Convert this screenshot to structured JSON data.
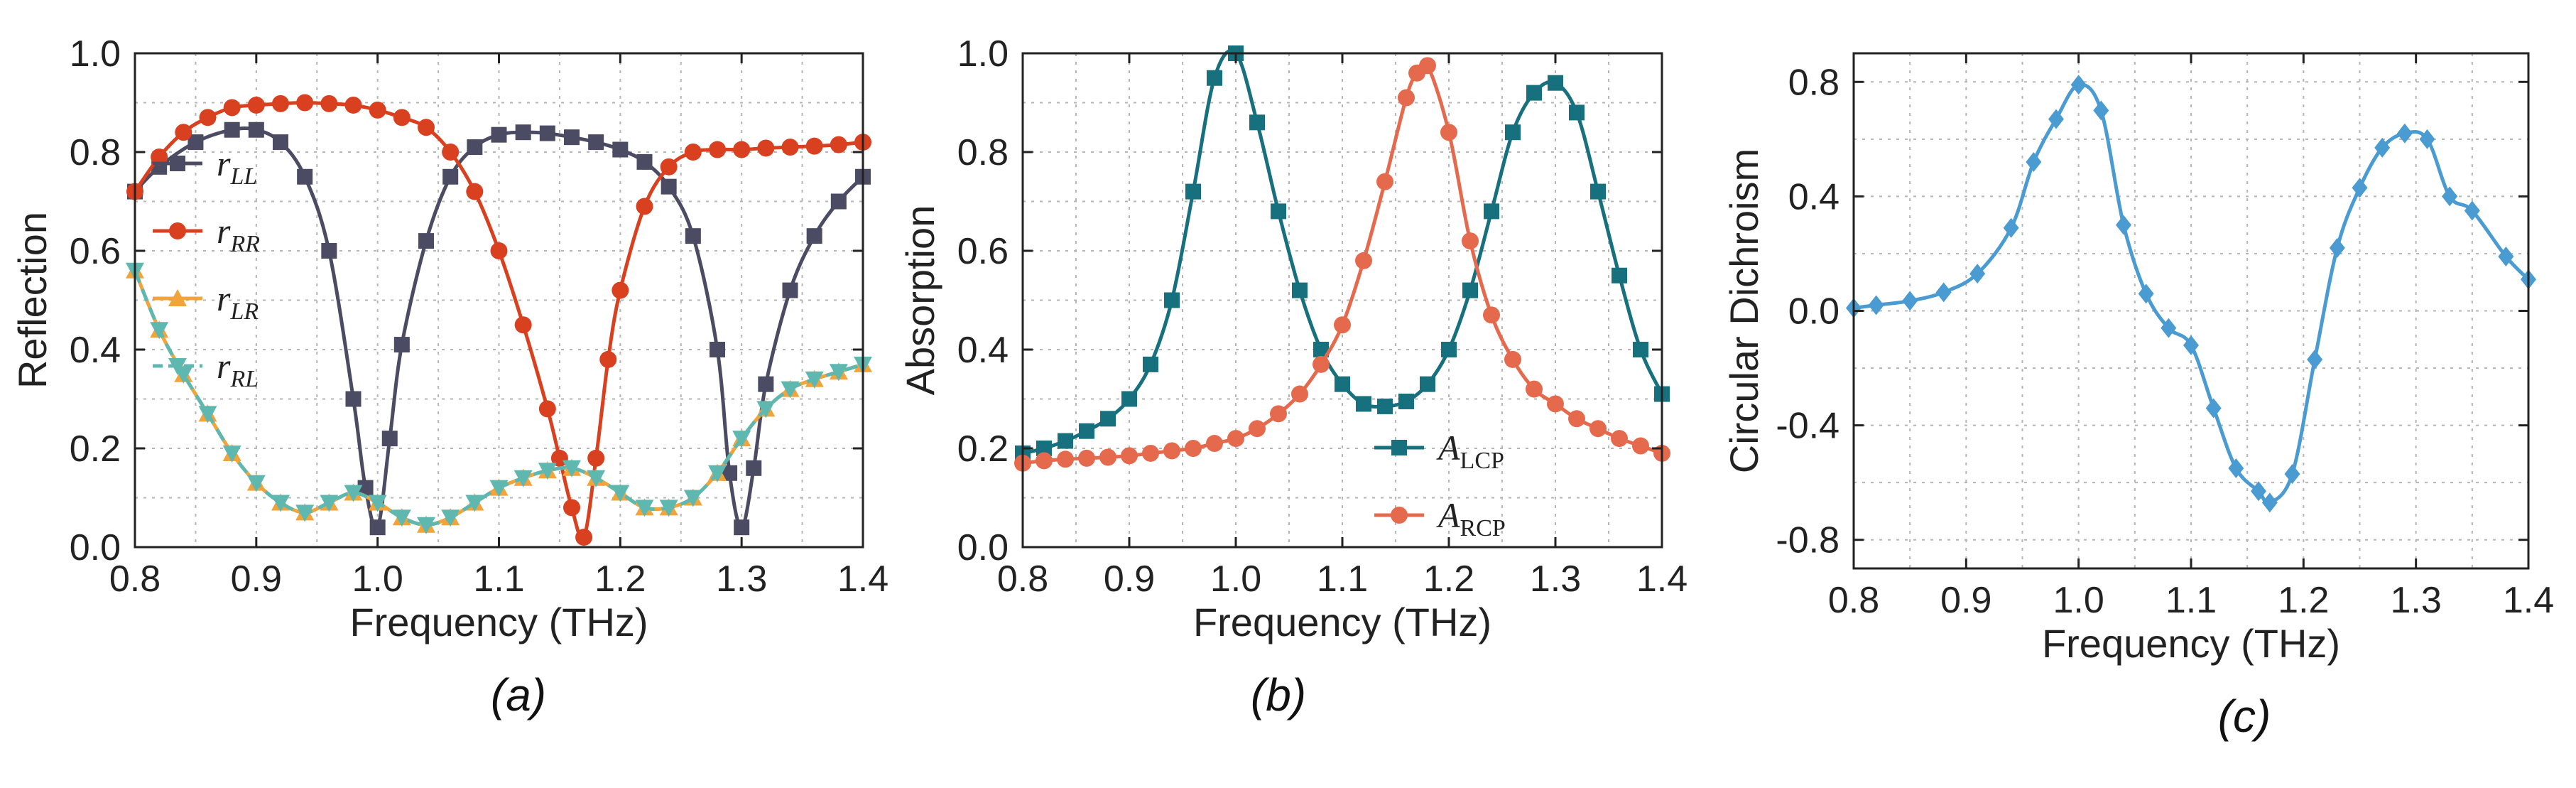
{
  "chart_data": [
    {
      "type": "line",
      "panel_label": "(a)",
      "xlabel": "Frequency (THz)",
      "ylabel": "Reflection",
      "xlim": [
        0.8,
        1.4
      ],
      "ylim": [
        0.0,
        1.0
      ],
      "xticks": [
        "0.8",
        "0.9",
        "1.0",
        "1.1",
        "1.2",
        "1.3",
        "1.4"
      ],
      "yticks": [
        "0.0",
        "0.2",
        "0.4",
        "0.6",
        "0.8",
        "1.0"
      ],
      "grid": true,
      "legend_position": "left",
      "series": [
        {
          "name": "r_LL",
          "legend_main": "r",
          "legend_sub": "LL",
          "color": "#4b4b63",
          "marker": "square",
          "x": [
            0.8,
            0.82,
            0.85,
            0.88,
            0.9,
            0.92,
            0.94,
            0.96,
            0.98,
            0.99,
            1.0,
            1.01,
            1.02,
            1.04,
            1.06,
            1.08,
            1.1,
            1.12,
            1.14,
            1.16,
            1.18,
            1.2,
            1.22,
            1.24,
            1.26,
            1.28,
            1.29,
            1.3,
            1.31,
            1.32,
            1.34,
            1.36,
            1.38,
            1.4
          ],
          "y": [
            0.72,
            0.77,
            0.82,
            0.845,
            0.845,
            0.82,
            0.75,
            0.6,
            0.3,
            0.12,
            0.04,
            0.22,
            0.41,
            0.62,
            0.75,
            0.81,
            0.835,
            0.84,
            0.838,
            0.83,
            0.82,
            0.805,
            0.78,
            0.73,
            0.63,
            0.4,
            0.15,
            0.04,
            0.16,
            0.33,
            0.52,
            0.63,
            0.7,
            0.75
          ]
        },
        {
          "name": "r_RR",
          "legend_main": "r",
          "legend_sub": "RR",
          "color": "#d9401f",
          "marker": "circle",
          "x": [
            0.8,
            0.82,
            0.84,
            0.86,
            0.88,
            0.9,
            0.92,
            0.94,
            0.96,
            0.98,
            1.0,
            1.02,
            1.04,
            1.06,
            1.08,
            1.1,
            1.12,
            1.14,
            1.15,
            1.16,
            1.17,
            1.18,
            1.19,
            1.2,
            1.22,
            1.24,
            1.26,
            1.28,
            1.3,
            1.32,
            1.34,
            1.36,
            1.38,
            1.4
          ],
          "y": [
            0.72,
            0.79,
            0.84,
            0.87,
            0.89,
            0.895,
            0.898,
            0.9,
            0.898,
            0.895,
            0.885,
            0.87,
            0.85,
            0.8,
            0.72,
            0.6,
            0.45,
            0.28,
            0.18,
            0.08,
            0.02,
            0.18,
            0.38,
            0.52,
            0.69,
            0.77,
            0.8,
            0.805,
            0.805,
            0.808,
            0.81,
            0.812,
            0.815,
            0.82
          ]
        },
        {
          "name": "r_LR",
          "legend_main": "r",
          "legend_sub": "LR",
          "color": "#f2a33a",
          "marker": "triangle-up",
          "x": [
            0.8,
            0.82,
            0.84,
            0.86,
            0.88,
            0.9,
            0.92,
            0.94,
            0.96,
            0.98,
            1.0,
            1.02,
            1.04,
            1.06,
            1.08,
            1.1,
            1.12,
            1.14,
            1.16,
            1.18,
            1.2,
            1.22,
            1.24,
            1.26,
            1.28,
            1.3,
            1.32,
            1.34,
            1.36,
            1.38,
            1.4
          ],
          "y": [
            0.56,
            0.44,
            0.35,
            0.27,
            0.19,
            0.13,
            0.09,
            0.07,
            0.09,
            0.11,
            0.09,
            0.06,
            0.045,
            0.06,
            0.09,
            0.12,
            0.14,
            0.155,
            0.16,
            0.14,
            0.11,
            0.08,
            0.08,
            0.1,
            0.15,
            0.22,
            0.28,
            0.32,
            0.34,
            0.355,
            0.37
          ]
        },
        {
          "name": "r_RL",
          "legend_main": "r",
          "legend_sub": "RL",
          "color": "#5fb8b0",
          "marker": "triangle-down",
          "dashed": true,
          "x": [
            0.8,
            0.82,
            0.84,
            0.86,
            0.88,
            0.9,
            0.92,
            0.94,
            0.96,
            0.98,
            1.0,
            1.02,
            1.04,
            1.06,
            1.08,
            1.1,
            1.12,
            1.14,
            1.16,
            1.18,
            1.2,
            1.22,
            1.24,
            1.26,
            1.28,
            1.3,
            1.32,
            1.34,
            1.36,
            1.38,
            1.4
          ],
          "y": [
            0.56,
            0.44,
            0.35,
            0.27,
            0.19,
            0.13,
            0.09,
            0.07,
            0.09,
            0.11,
            0.09,
            0.06,
            0.045,
            0.06,
            0.09,
            0.12,
            0.14,
            0.155,
            0.16,
            0.14,
            0.11,
            0.08,
            0.08,
            0.1,
            0.15,
            0.22,
            0.28,
            0.32,
            0.34,
            0.355,
            0.37
          ]
        }
      ]
    },
    {
      "type": "line",
      "panel_label": "(b)",
      "xlabel": "Frequency (THz)",
      "ylabel": "Absorption",
      "xlim": [
        0.8,
        1.4
      ],
      "ylim": [
        0.0,
        1.0
      ],
      "xticks": [
        "0.8",
        "0.9",
        "1.0",
        "1.1",
        "1.2",
        "1.3",
        "1.4"
      ],
      "yticks": [
        "0.0",
        "0.2",
        "0.4",
        "0.6",
        "0.8",
        "1.0"
      ],
      "grid": true,
      "legend_position": "bottom-right",
      "series": [
        {
          "name": "A_LCP",
          "legend_main": "A",
          "legend_sub": "LCP",
          "color": "#17707d",
          "marker": "square",
          "x": [
            0.8,
            0.82,
            0.84,
            0.86,
            0.88,
            0.9,
            0.92,
            0.94,
            0.96,
            0.98,
            1.0,
            1.02,
            1.04,
            1.06,
            1.08,
            1.1,
            1.12,
            1.14,
            1.16,
            1.18,
            1.2,
            1.22,
            1.24,
            1.26,
            1.28,
            1.3,
            1.32,
            1.34,
            1.36,
            1.38,
            1.4
          ],
          "y": [
            0.19,
            0.2,
            0.215,
            0.235,
            0.26,
            0.3,
            0.37,
            0.5,
            0.72,
            0.95,
            1.0,
            0.86,
            0.68,
            0.52,
            0.4,
            0.33,
            0.29,
            0.285,
            0.295,
            0.33,
            0.4,
            0.52,
            0.68,
            0.84,
            0.92,
            0.94,
            0.88,
            0.72,
            0.55,
            0.4,
            0.31
          ]
        },
        {
          "name": "A_RCP",
          "legend_main": "A",
          "legend_sub": "RCP",
          "color": "#e56a4d",
          "marker": "circle",
          "x": [
            0.8,
            0.82,
            0.84,
            0.86,
            0.88,
            0.9,
            0.92,
            0.94,
            0.96,
            0.98,
            1.0,
            1.02,
            1.04,
            1.06,
            1.08,
            1.1,
            1.12,
            1.14,
            1.16,
            1.17,
            1.18,
            1.2,
            1.22,
            1.24,
            1.26,
            1.28,
            1.3,
            1.32,
            1.34,
            1.36,
            1.38,
            1.4
          ],
          "y": [
            0.17,
            0.175,
            0.178,
            0.18,
            0.182,
            0.185,
            0.19,
            0.195,
            0.2,
            0.21,
            0.22,
            0.24,
            0.27,
            0.31,
            0.37,
            0.45,
            0.58,
            0.74,
            0.91,
            0.96,
            0.975,
            0.84,
            0.62,
            0.47,
            0.38,
            0.32,
            0.29,
            0.26,
            0.24,
            0.22,
            0.205,
            0.19
          ]
        }
      ]
    },
    {
      "type": "line",
      "panel_label": "(c)",
      "xlabel": "Frequency (THz)",
      "ylabel": "Circular Dichroism",
      "xlim": [
        0.8,
        1.4
      ],
      "ylim": [
        -0.9,
        0.9
      ],
      "xticks": [
        "0.8",
        "0.9",
        "1.0",
        "1.1",
        "1.2",
        "1.3",
        "1.4"
      ],
      "yticks": [
        "-0.8",
        "-0.4",
        "0.0",
        "0.4",
        "0.8"
      ],
      "ytick_values": [
        -0.8,
        -0.4,
        0.0,
        0.4,
        0.8
      ],
      "grid": true,
      "series": [
        {
          "name": "",
          "color": "#4a9bd1",
          "marker": "diamond",
          "x": [
            0.8,
            0.82,
            0.85,
            0.88,
            0.91,
            0.94,
            0.96,
            0.98,
            1.0,
            1.02,
            1.04,
            1.06,
            1.08,
            1.1,
            1.12,
            1.14,
            1.16,
            1.17,
            1.19,
            1.21,
            1.23,
            1.25,
            1.27,
            1.29,
            1.31,
            1.33,
            1.35,
            1.38,
            1.4
          ],
          "y": [
            0.01,
            0.02,
            0.035,
            0.065,
            0.13,
            0.29,
            0.52,
            0.67,
            0.79,
            0.7,
            0.3,
            0.06,
            -0.06,
            -0.12,
            -0.34,
            -0.55,
            -0.63,
            -0.67,
            -0.57,
            -0.17,
            0.22,
            0.43,
            0.57,
            0.62,
            0.6,
            0.4,
            0.35,
            0.19,
            0.11
          ]
        }
      ]
    }
  ]
}
